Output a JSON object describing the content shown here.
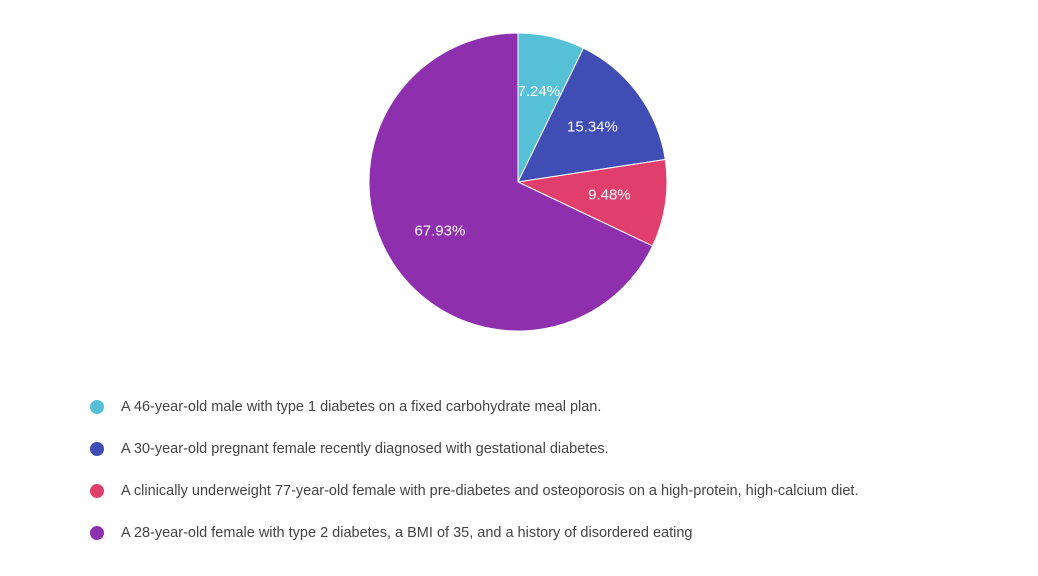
{
  "chart_data": {
    "type": "pie",
    "title": "",
    "slices": [
      {
        "label": "A 46-year-old male with type 1 diabetes on a fixed carbohydrate meal plan.",
        "value": 7.24,
        "display": "7.24%",
        "color": "#56c1d6"
      },
      {
        "label": "A 30-year-old pregnant female recently diagnosed with gestational diabetes.",
        "value": 15.34,
        "display": "15.34%",
        "color": "#3f4db5"
      },
      {
        "label": "A clinically underweight 77-year-old female with pre-diabetes and osteoporosis on a high-protein, high-calcium diet.",
        "value": 9.48,
        "display": "9.48%",
        "color": "#e03f6c"
      },
      {
        "label": "A 28-year-old female with type 2 diabetes, a BMI of 35, and a history of disordered eating",
        "value": 67.93,
        "display": "67.93%",
        "color": "#8e2fae"
      }
    ],
    "legend_position": "bottom-left",
    "start_angle": "top",
    "direction": "clockwise"
  }
}
